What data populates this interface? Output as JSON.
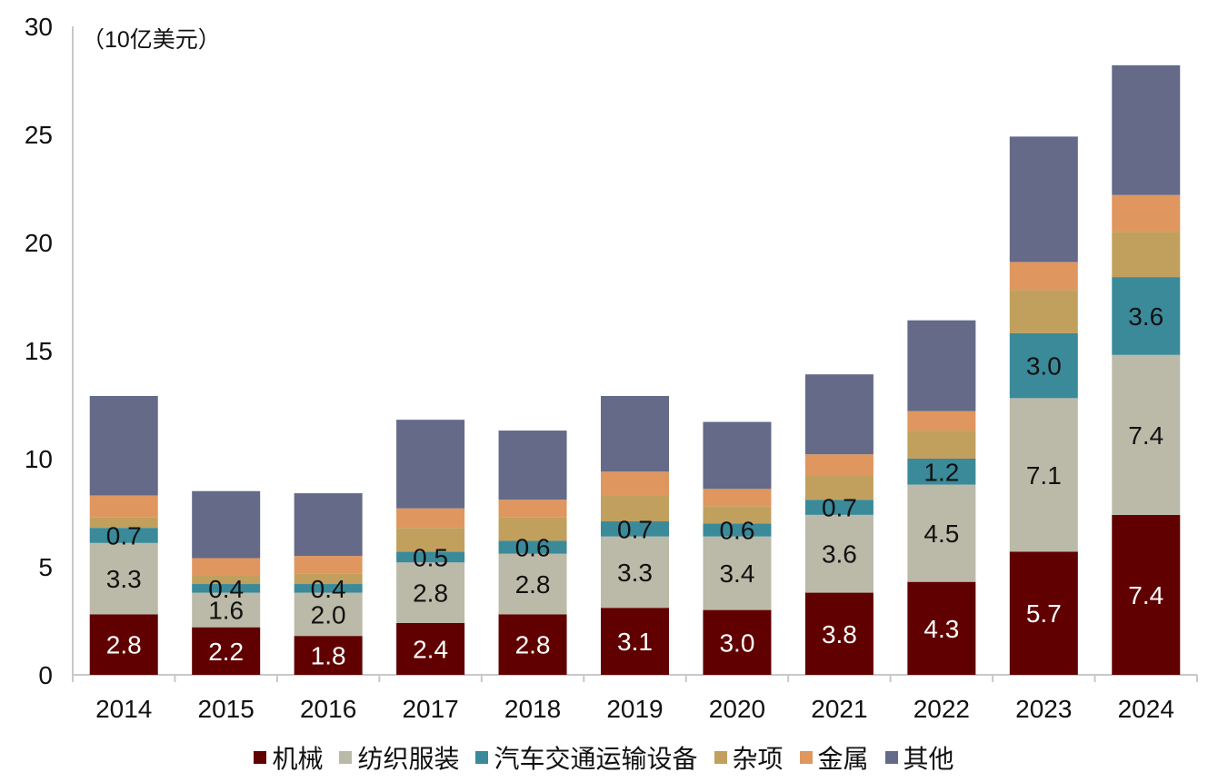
{
  "chart_data": {
    "type": "bar",
    "stacked": true,
    "title": "",
    "unit_label": "（10亿美元）",
    "xlabel": "",
    "ylabel": "",
    "ylim": [
      0,
      30
    ],
    "yticks": [
      0,
      5,
      10,
      15,
      20,
      25,
      30
    ],
    "grid": false,
    "legend_position": "bottom",
    "categories": [
      "2014",
      "2015",
      "2016",
      "2017",
      "2018",
      "2019",
      "2020",
      "2021",
      "2022",
      "2023",
      "2024"
    ],
    "series": [
      {
        "name": "机械",
        "color": "#600000",
        "label_color": "#ffffff",
        "values": [
          2.8,
          2.2,
          1.8,
          2.4,
          2.8,
          3.1,
          3.0,
          3.8,
          4.3,
          5.7,
          7.4
        ],
        "labels": [
          "2.8",
          "2.2",
          "1.8",
          "2.4",
          "2.8",
          "3.1",
          "3.0",
          "3.8",
          "4.3",
          "5.7",
          "7.4"
        ]
      },
      {
        "name": "纺织服装",
        "color": "#BBBAA8",
        "label_color": "#111111",
        "values": [
          3.3,
          1.6,
          2.0,
          2.8,
          2.8,
          3.3,
          3.4,
          3.6,
          4.5,
          7.1,
          7.4
        ],
        "labels": [
          "3.3",
          "1.6",
          "2.0",
          "2.8",
          "2.8",
          "3.3",
          "3.4",
          "3.6",
          "4.5",
          "7.1",
          "7.4"
        ]
      },
      {
        "name": "汽车交通运输设备",
        "color": "#3A8A9A",
        "label_color": "#111111",
        "values": [
          0.7,
          0.4,
          0.4,
          0.5,
          0.6,
          0.7,
          0.6,
          0.7,
          1.2,
          3.0,
          3.6
        ],
        "labels": [
          "0.7",
          "0.4",
          "0.4",
          "0.5",
          "0.6",
          "0.7",
          "0.6",
          "0.7",
          "1.2",
          "3.0",
          "3.6"
        ]
      },
      {
        "name": "杂项",
        "color": "#C1A05E",
        "label_color": "#111111",
        "values": [
          0.5,
          0.4,
          0.5,
          1.1,
          1.1,
          1.2,
          0.8,
          1.1,
          1.3,
          2.0,
          2.1
        ],
        "labels": null
      },
      {
        "name": "金属",
        "color": "#E0965F",
        "label_color": "#111111",
        "values": [
          1.0,
          0.8,
          0.8,
          0.9,
          0.8,
          1.1,
          0.8,
          1.0,
          0.9,
          1.3,
          1.7
        ],
        "labels": null
      },
      {
        "name": "其他",
        "color": "#646A88",
        "label_color": "#111111",
        "values": [
          4.6,
          3.1,
          2.9,
          4.1,
          3.2,
          3.5,
          3.1,
          3.7,
          4.2,
          5.8,
          6.0
        ],
        "labels": null
      }
    ]
  }
}
